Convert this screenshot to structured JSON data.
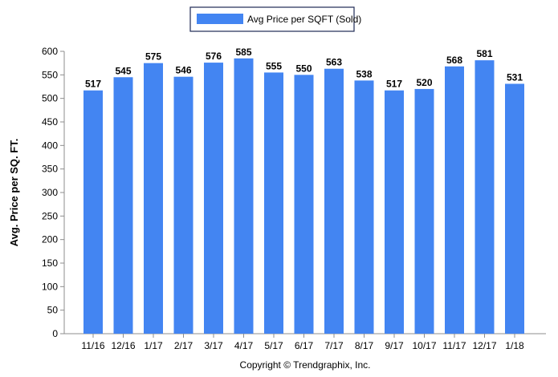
{
  "chart_data": {
    "type": "bar",
    "categories": [
      "11/16",
      "12/16",
      "1/17",
      "2/17",
      "3/17",
      "4/17",
      "5/17",
      "6/17",
      "7/17",
      "8/17",
      "9/17",
      "10/17",
      "11/17",
      "12/17",
      "1/18"
    ],
    "series": [
      {
        "name": "Avg Price per SQFT (Sold)",
        "values": [
          517,
          545,
          575,
          546,
          576,
          585,
          555,
          550,
          563,
          538,
          517,
          520,
          568,
          581,
          531
        ]
      }
    ],
    "ylabel": "Avg. Price per SQ. FT.",
    "xlabel": "",
    "ylim": [
      0,
      600
    ],
    "yticks": [
      0,
      50,
      100,
      150,
      200,
      250,
      300,
      350,
      400,
      450,
      500,
      550,
      600
    ],
    "grid": false,
    "legend": "top-center",
    "bar_color": "#4385f2",
    "show_data_labels": true
  },
  "footer": {
    "copyright": "Copyright © Trendgraphix, Inc."
  }
}
